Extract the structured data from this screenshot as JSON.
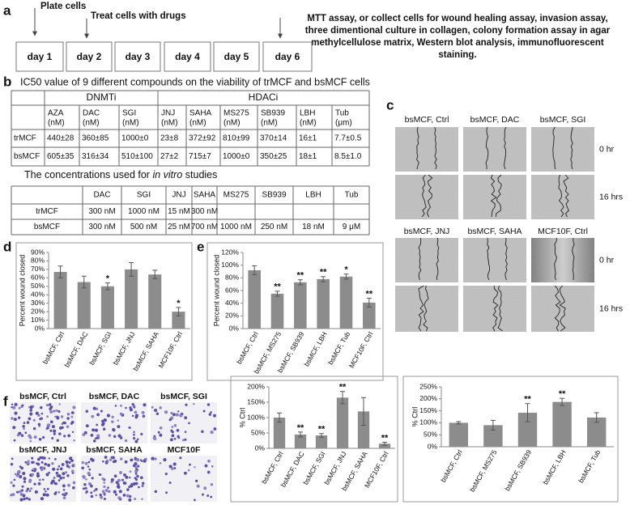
{
  "panel_labels": [
    "a",
    "b",
    "c",
    "d",
    "e",
    "f"
  ],
  "timeline": {
    "steps": [
      "Plate cells",
      "Treat cells with drugs"
    ],
    "assays": [
      "MTT assay, or collect cells for wound healing assay, invasion assay,",
      "three dimentional culture in collagen, colony formation assay in agar",
      "methylcellulose matrix, Western blot analysis, immunofluorescent",
      "staining."
    ],
    "days": [
      "day 1",
      "day 2",
      "day 3",
      "day 4",
      "day 5",
      "day 6"
    ]
  },
  "ic50": {
    "title": "IC50 value of 9 different compounds on the viability of trMCF and bsMCF cells",
    "groups": [
      "DNMTi",
      "HDACi"
    ],
    "columns": [
      [
        "AZA",
        "(nM)"
      ],
      [
        "DAC",
        "(nM)"
      ],
      [
        "SGI",
        "(nM)"
      ],
      [
        "JNJ",
        "(nM)"
      ],
      [
        "SAHA",
        "(nM)"
      ],
      [
        "MS275",
        "(nM)"
      ],
      [
        "SB939",
        "(nM)"
      ],
      [
        "LBH",
        "(nM)"
      ],
      [
        "Tub",
        "(μm)"
      ]
    ],
    "rows": [
      {
        "name": "trMCF",
        "values": [
          "440±28",
          "360±85",
          "1000±0",
          "23±8",
          "372±92",
          "810±99",
          "370±14",
          "16±1",
          "7.7±0.5"
        ]
      },
      {
        "name": "bsMCF",
        "values": [
          "605±35",
          "316±34",
          "510±100",
          "27±2",
          "715±7",
          "1000±0",
          "350±25",
          "18±1",
          "8.5±1.0"
        ]
      }
    ]
  },
  "concentrations": {
    "title": [
      "The concentrations used for",
      "in vitro",
      "studies"
    ],
    "columns": [
      "DAC",
      "SGI",
      "JNJ",
      "SAHA",
      "MS275",
      "SB939",
      "LBH",
      "Tub"
    ],
    "rows": [
      {
        "name": "trMCF",
        "values": [
          "300 nM",
          "1000 nM",
          "15 nM",
          "300 nM"
        ]
      },
      {
        "name": "bsMCF",
        "values": [
          "300 nM",
          "500 nM",
          "25 nM",
          "700 nM",
          "1000 nM",
          "250 nM",
          "18 nM",
          "9 μM"
        ]
      }
    ]
  },
  "wound_images": {
    "labels": [
      "bsMCF, Ctrl",
      "bsMCF, DAC",
      "bsMCF, SGI",
      "bsMCF, JNJ",
      "bsMCF, SAHA",
      "MCF10F, Ctrl"
    ],
    "times": [
      "0 hr",
      "16 hrs",
      "0 hr",
      "16 hrs"
    ]
  },
  "invasion_images": {
    "labels": [
      "bsMCF, Ctrl",
      "bsMCF, DAC",
      "bsMCF, SGI",
      "bsMCF, JNJ",
      "bsMCF, SAHA",
      "MCF10F"
    ]
  },
  "chart_data": [
    {
      "type": "bar",
      "ylabel": "Percent wound closed",
      "color": "#8c8c8c",
      "categories": [
        "bsMCF, Ctrl",
        "bsMCF, DAC",
        "bsMCF, SGI",
        "bsMCF, JNJ",
        "bsMCF, SAHA",
        "MCF10F, Ctrl"
      ],
      "values": [
        67,
        55,
        50,
        70,
        64,
        20
      ],
      "errors": [
        7,
        7,
        4,
        8,
        5,
        5
      ],
      "significance": [
        null,
        null,
        "*",
        null,
        null,
        "*"
      ],
      "ylim": [
        0,
        90
      ],
      "yticks": [
        {
          "value": 0,
          "label": "0%"
        },
        {
          "value": 10,
          "label": "10%"
        },
        {
          "value": 20,
          "label": "20%"
        },
        {
          "value": 30,
          "label": "30%"
        },
        {
          "value": 40,
          "label": "40%"
        },
        {
          "value": 50,
          "label": "50%"
        },
        {
          "value": 60,
          "label": "60%"
        },
        {
          "value": 70,
          "label": "70%"
        },
        {
          "value": 80,
          "label": "80%"
        },
        {
          "value": 90,
          "label": "90%"
        }
      ]
    },
    {
      "type": "bar",
      "ylabel": "Percent wound closed",
      "color": "#8c8c8c",
      "categories": [
        "bsMCF, Ctrl",
        "bsMCF, MS275",
        "bsMCF, SB939",
        "bsMCF, LBH",
        "bsMCF, Tub",
        "MCF10F, Ctrl"
      ],
      "values": [
        92,
        55,
        73,
        78,
        82,
        41
      ],
      "errors": [
        7,
        4,
        4,
        4,
        4,
        7
      ],
      "significance": [
        null,
        "**",
        "**",
        "**",
        "*",
        "**"
      ],
      "ylim": [
        0,
        120
      ],
      "yticks": [
        {
          "value": 0,
          "label": "0%"
        },
        {
          "value": 20,
          "label": "20%"
        },
        {
          "value": 40,
          "label": "40%"
        },
        {
          "value": 60,
          "label": "60%"
        },
        {
          "value": 80,
          "label": "80%"
        },
        {
          "value": 100,
          "label": "100%"
        },
        {
          "value": 120,
          "label": "120%"
        }
      ]
    },
    {
      "type": "bar",
      "ylabel": "% Ctrl",
      "color": "#8c8c8c",
      "categories": [
        "bsMCF, Ctrl",
        "bsMCF, DAC",
        "bsMCF, SGI",
        "bsMCF, JNJ",
        "bsMCF, SAHA",
        "MCF10F, Ctrl"
      ],
      "values": [
        100,
        45,
        42,
        165,
        120,
        15
      ],
      "errors": [
        15,
        8,
        6,
        20,
        45,
        5
      ],
      "significance": [
        null,
        "**",
        "**",
        "**",
        null,
        "**"
      ],
      "ylim": [
        0,
        200
      ],
      "yticks": [
        {
          "value": 0,
          "label": "0%"
        },
        {
          "value": 50,
          "label": "50%"
        },
        {
          "value": 100,
          "label": "100%"
        },
        {
          "value": 150,
          "label": "150%"
        },
        {
          "value": 200,
          "label": "200%"
        }
      ]
    },
    {
      "type": "bar",
      "ylabel": "% Ctrl",
      "color": "#8c8c8c",
      "categories": [
        "bsMCF, Ctrl",
        "bsMCF, MS275",
        "bsMCF, SB939",
        "bsMCF, LBH",
        "bsMCF, Tub"
      ],
      "values": [
        100,
        90,
        142,
        187,
        122
      ],
      "errors": [
        5,
        20,
        38,
        15,
        20
      ],
      "significance": [
        null,
        null,
        "**",
        "**",
        null
      ],
      "ylim": [
        0,
        250
      ],
      "yticks": [
        {
          "value": 0,
          "label": "0%"
        },
        {
          "value": 50,
          "label": "50%"
        },
        {
          "value": 100,
          "label": "100%"
        },
        {
          "value": 150,
          "label": "150%"
        },
        {
          "value": 200,
          "label": "200%"
        },
        {
          "value": 250,
          "label": "250%"
        }
      ]
    }
  ]
}
